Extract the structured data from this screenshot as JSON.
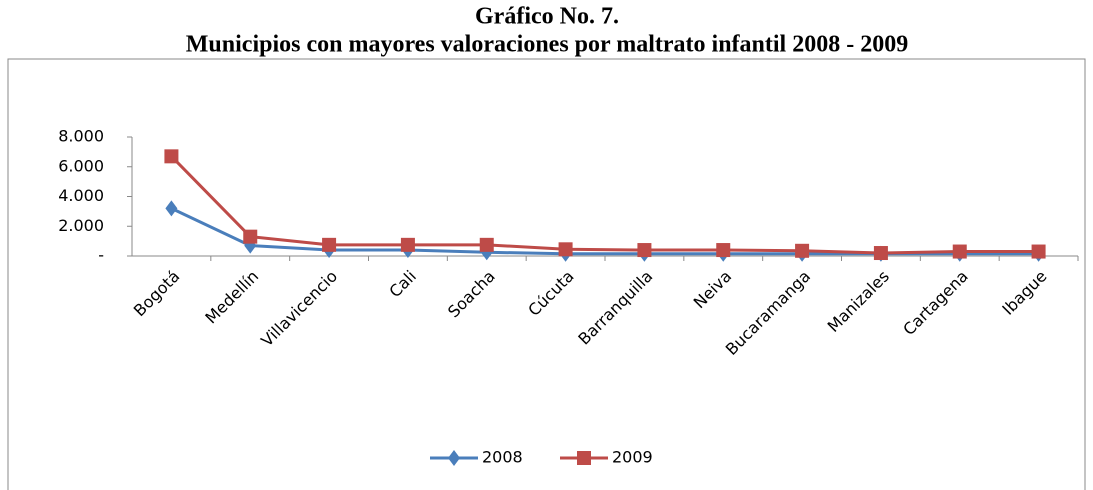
{
  "chart_data": {
    "type": "line",
    "title": "Gráfico No. 7.",
    "subtitle": "Municipios con mayores valoraciones por maltrato infantil 2008 - 2009",
    "categories": [
      "Bogotá",
      "Medellín",
      "Villavicencio",
      "Cali",
      "Soacha",
      "Cúcuta",
      "Barranquilla",
      "Neiva",
      "Bucaramanga",
      "Manizales",
      "Cartagena",
      "Ibague"
    ],
    "series": [
      {
        "name": "2008",
        "color": "#4a7ebb",
        "marker": "diamond",
        "values": [
          3200,
          700,
          400,
          400,
          250,
          150,
          150,
          150,
          150,
          150,
          150,
          150
        ]
      },
      {
        "name": "2009",
        "color": "#be4b48",
        "marker": "square",
        "values": [
          6700,
          1300,
          750,
          750,
          750,
          450,
          400,
          400,
          350,
          200,
          300,
          300
        ]
      }
    ],
    "ylim": [
      0,
      8000
    ],
    "yticks": [
      {
        "value": 0,
        "label": "-"
      },
      {
        "value": 2000,
        "label": "2.000"
      },
      {
        "value": 4000,
        "label": "4.000"
      },
      {
        "value": 6000,
        "label": "6.000"
      },
      {
        "value": 8000,
        "label": "8.000"
      }
    ],
    "legend": "bottom"
  }
}
